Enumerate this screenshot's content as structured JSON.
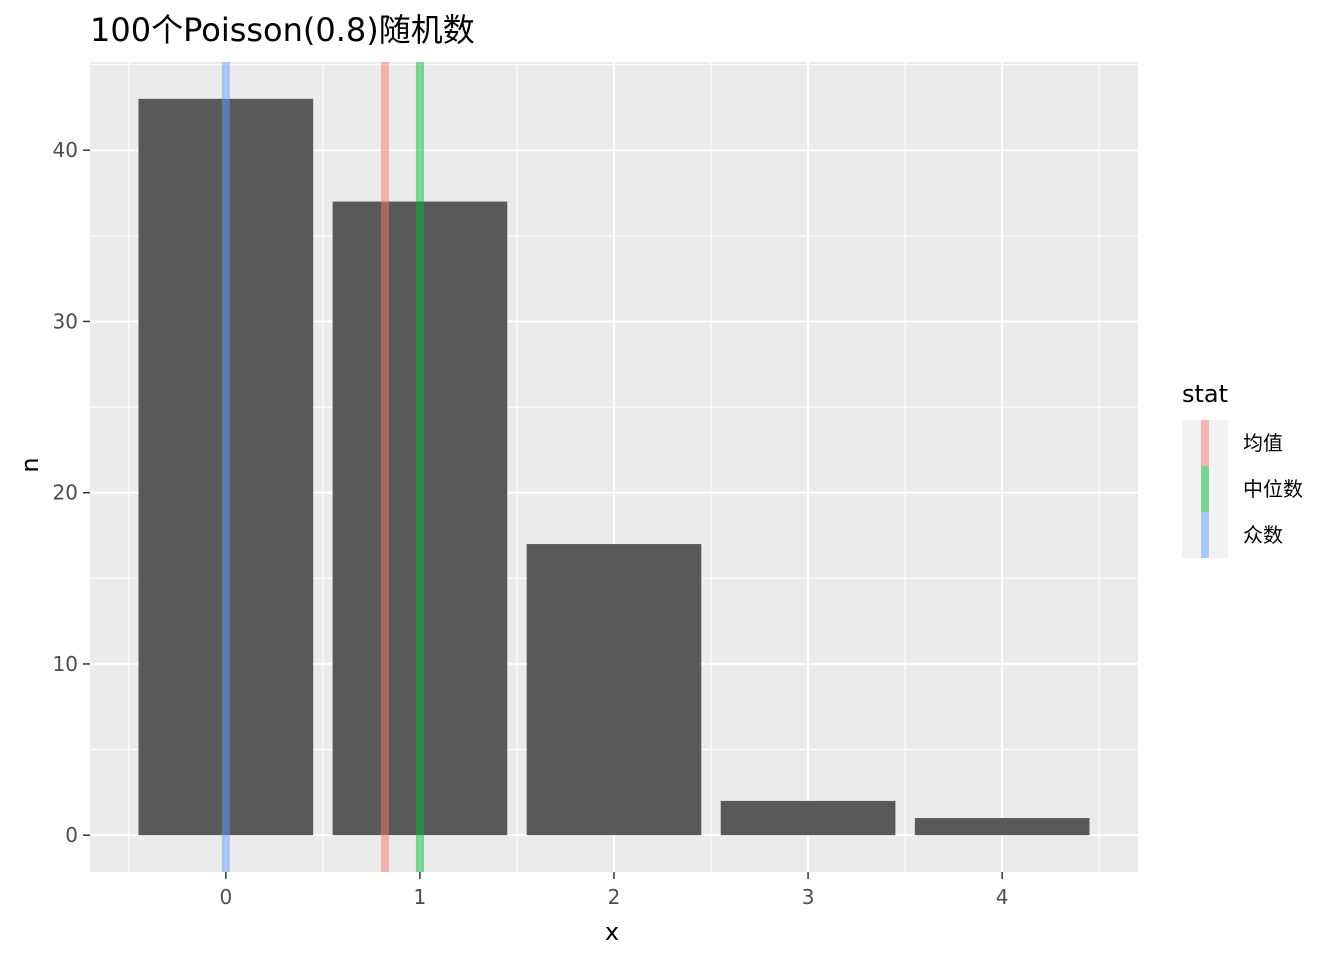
{
  "chart_data": {
    "type": "bar",
    "title": "100个Poisson(0.8)随机数",
    "xlabel": "x",
    "ylabel": "n",
    "categories": [
      "0",
      "1",
      "2",
      "3",
      "4"
    ],
    "x": [
      0,
      1,
      2,
      3,
      4
    ],
    "values": [
      43,
      37,
      17,
      2,
      1
    ],
    "xlim": [
      -0.7,
      4.7
    ],
    "ylim": [
      -2.15,
      45.15
    ],
    "xticks": [
      0,
      1,
      2,
      3,
      4
    ],
    "yticks": [
      0,
      10,
      20,
      30,
      40
    ],
    "grid": true,
    "bar_color": "#595959",
    "panel_background": "#ebebeb",
    "legend": {
      "title": "stat",
      "position": "right",
      "entries": [
        {
          "label": "均值",
          "color": "#f8766d"
        },
        {
          "label": "中位数",
          "color": "#00ba38"
        },
        {
          "label": "众数",
          "color": "#619cff"
        }
      ]
    },
    "vlines": [
      {
        "stat": "均值",
        "x": 0.82,
        "color": "#f8766d"
      },
      {
        "stat": "中位数",
        "x": 1,
        "color": "#00ba38"
      },
      {
        "stat": "众数",
        "x": 0,
        "color": "#619cff"
      }
    ]
  }
}
